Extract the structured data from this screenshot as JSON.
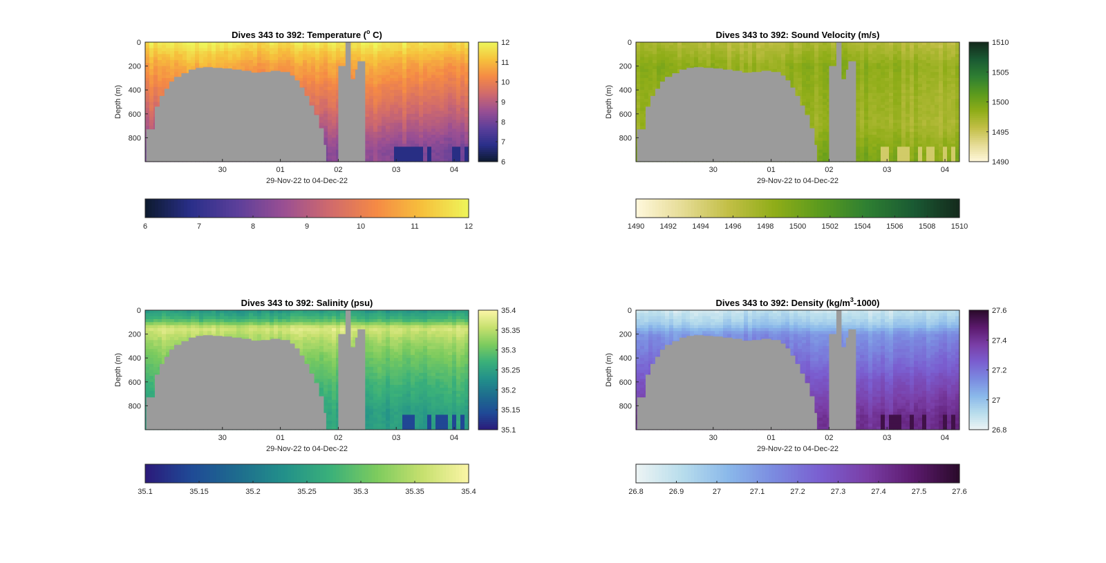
{
  "chart_data": [
    {
      "type": "heatmap",
      "title_text": "Dives 343 to 392: Temperature (",
      "title_sup": "o",
      "title_tail": " C)",
      "xlabel": "29-Nov-22 to 04-Dec-22",
      "ylabel": "Depth (m)",
      "xlim": [
        "2022-11-28T16:00",
        "2022-12-04T06:00"
      ],
      "ylim": [
        1000,
        0
      ],
      "xticks": [
        {
          "date": "2022-11-30",
          "label": "30"
        },
        {
          "date": "2022-12-01",
          "label": "01"
        },
        {
          "date": "2022-12-02",
          "label": "02"
        },
        {
          "date": "2022-12-03",
          "label": "03"
        },
        {
          "date": "2022-12-04",
          "label": "04"
        }
      ],
      "yticks": [
        0,
        200,
        400,
        600,
        800
      ],
      "colorbar": {
        "min": 6,
        "max": 12,
        "side_ticks": [
          12,
          11,
          10,
          9,
          8,
          7,
          6
        ],
        "bottom_ticks": [
          6,
          7,
          8,
          9,
          10,
          11,
          12
        ]
      },
      "colormap": [
        "#0d1a2e",
        "#2a2f8a",
        "#5c3f9a",
        "#9a4f93",
        "#d06a6c",
        "#f58a45",
        "#f6c13c",
        "#eef55a"
      ],
      "profile": {
        "depths": [
          0,
          100,
          200,
          350,
          600,
          900
        ],
        "values": [
          11.8,
          11.2,
          10.7,
          10.2,
          9.4,
          8.3
        ]
      },
      "deep_low_value": 6.8,
      "nodata_color": "#9b9b9b"
    },
    {
      "type": "heatmap",
      "title_text": "Dives 343 to 392: Sound Velocity (m/s)",
      "xlabel": "29-Nov-22 to 04-Dec-22",
      "ylabel": "Depth (m)",
      "xlim": [
        "2022-11-28T16:00",
        "2022-12-04T06:00"
      ],
      "ylim": [
        1000,
        0
      ],
      "xticks": [
        {
          "date": "2022-11-30",
          "label": "30"
        },
        {
          "date": "2022-12-01",
          "label": "01"
        },
        {
          "date": "2022-12-02",
          "label": "02"
        },
        {
          "date": "2022-12-03",
          "label": "03"
        },
        {
          "date": "2022-12-04",
          "label": "04"
        }
      ],
      "yticks": [
        0,
        200,
        400,
        600,
        800
      ],
      "colorbar": {
        "min": 1490,
        "max": 1510,
        "side_ticks": [
          1510,
          1505,
          1500,
          1495,
          1490
        ],
        "bottom_ticks": [
          1490,
          1492,
          1494,
          1496,
          1498,
          1500,
          1502,
          1504,
          1506,
          1508,
          1510
        ]
      },
      "colormap": [
        "#fff8dc",
        "#e6dc96",
        "#c2bf46",
        "#8fad18",
        "#5a9a1e",
        "#2e7f32",
        "#1a5a33",
        "#142a1c"
      ],
      "profile": {
        "depths": [
          0,
          100,
          200,
          400,
          700,
          950
        ],
        "values": [
          1496.5,
          1497.5,
          1498.5,
          1498.0,
          1497.5,
          1499.5
        ]
      },
      "deep_low_value": 1494.5,
      "nodata_color": "#9b9b9b"
    },
    {
      "type": "heatmap",
      "title_text": "Dives 343 to 392: Salinity (psu)",
      "xlabel": "29-Nov-22 to 04-Dec-22",
      "ylabel": "Depth (m)",
      "xlim": [
        "2022-11-28T16:00",
        "2022-12-04T06:00"
      ],
      "ylim": [
        1000,
        0
      ],
      "xticks": [
        {
          "date": "2022-11-30",
          "label": "30"
        },
        {
          "date": "2022-12-01",
          "label": "01"
        },
        {
          "date": "2022-12-02",
          "label": "02"
        },
        {
          "date": "2022-12-03",
          "label": "03"
        },
        {
          "date": "2022-12-04",
          "label": "04"
        }
      ],
      "yticks": [
        0,
        200,
        400,
        600,
        800
      ],
      "colorbar": {
        "min": 35.1,
        "max": 35.4,
        "side_ticks": [
          "35.4",
          "35.35",
          "35.3",
          "35.25",
          "35.2",
          "35.15",
          "35.1"
        ],
        "bottom_ticks": [
          "35.1",
          "35.15",
          "35.2",
          "35.25",
          "35.3",
          "35.35",
          "35.4"
        ]
      },
      "colormap": [
        "#2b1a7a",
        "#1f4a96",
        "#1e6c8e",
        "#22908a",
        "#3ab07a",
        "#7ccb5e",
        "#c6e06e",
        "#fbf5a6"
      ],
      "profile": {
        "depths": [
          0,
          80,
          150,
          250,
          400,
          600,
          850
        ],
        "values": [
          35.24,
          35.28,
          35.37,
          35.34,
          35.31,
          35.28,
          35.25
        ]
      },
      "deep_low_value": 35.14,
      "nodata_color": "#9b9b9b"
    },
    {
      "type": "heatmap",
      "title_text": "Dives 343 to 392: Density (kg/m",
      "title_sup": "3",
      "title_tail": "-1000)",
      "xlabel": "29-Nov-22 to 04-Dec-22",
      "ylabel": "Depth (m)",
      "xlim": [
        "2022-11-28T16:00",
        "2022-12-04T06:00"
      ],
      "ylim": [
        1000,
        0
      ],
      "xticks": [
        {
          "date": "2022-11-30",
          "label": "30"
        },
        {
          "date": "2022-12-01",
          "label": "01"
        },
        {
          "date": "2022-12-02",
          "label": "02"
        },
        {
          "date": "2022-12-03",
          "label": "03"
        },
        {
          "date": "2022-12-04",
          "label": "04"
        }
      ],
      "yticks": [
        0,
        200,
        400,
        600,
        800
      ],
      "colorbar": {
        "min": 26.8,
        "max": 27.6,
        "side_ticks": [
          "27.6",
          "27.4",
          "27.2",
          "27",
          "26.8"
        ],
        "bottom_ticks": [
          "26.8",
          "26.9",
          "27",
          "27.1",
          "27.2",
          "27.3",
          "27.4",
          "27.5",
          "27.6"
        ]
      },
      "colormap": [
        "#edf4f4",
        "#b8ddec",
        "#8ab8ea",
        "#7b8ae0",
        "#7a5ed0",
        "#7a3ea6",
        "#5c1a6e",
        "#2a0a2a"
      ],
      "profile": {
        "depths": [
          0,
          120,
          200,
          400,
          600,
          900
        ],
        "values": [
          26.88,
          26.98,
          27.12,
          27.2,
          27.3,
          27.42
        ]
      },
      "deep_low_value": 27.55,
      "nodata_color": "#9b9b9b"
    }
  ],
  "gaps": {
    "ridge": [
      [
        "2022-11-28T18:00",
        730
      ],
      [
        "2022-11-28T20:00",
        540
      ],
      [
        "2022-11-28T22:00",
        450
      ],
      [
        "2022-11-29T00:00",
        390
      ],
      [
        "2022-11-29T02:00",
        330
      ],
      [
        "2022-11-29T04:00",
        290
      ],
      [
        "2022-11-29T07:00",
        260
      ],
      [
        "2022-11-29T10:00",
        230
      ],
      [
        "2022-11-29T13:00",
        215
      ],
      [
        "2022-11-29T16:00",
        210
      ],
      [
        "2022-11-29T20:00",
        215
      ],
      [
        "2022-11-30T00:00",
        220
      ],
      [
        "2022-11-30T04:00",
        230
      ],
      [
        "2022-11-30T08:00",
        240
      ],
      [
        "2022-11-30T12:00",
        255
      ],
      [
        "2022-11-30T16:00",
        250
      ],
      [
        "2022-11-30T20:00",
        240
      ],
      [
        "2022-12-01T00:00",
        250
      ],
      [
        "2022-12-01T04:00",
        280
      ],
      [
        "2022-12-01T06:00",
        320
      ],
      [
        "2022-12-01T08:00",
        380
      ],
      [
        "2022-12-01T10:00",
        450
      ],
      [
        "2022-12-01T12:00",
        530
      ],
      [
        "2022-12-01T14:00",
        610
      ],
      [
        "2022-12-01T16:00",
        720
      ],
      [
        "2022-12-01T18:00",
        860
      ]
    ],
    "ridge_start": "2022-11-28T16:30",
    "ridge_end": "2022-12-01T19:00",
    "column_blocks": [
      {
        "start": "2022-12-02T00:00",
        "end": "2022-12-02T03:00",
        "top": 200
      },
      {
        "start": "2022-12-02T03:00",
        "end": "2022-12-02T05:00",
        "top": 0
      },
      {
        "start": "2022-12-02T05:00",
        "end": "2022-12-02T07:00",
        "top": 310
      },
      {
        "start": "2022-12-02T07:00",
        "end": "2022-12-02T08:00",
        "top": 230
      },
      {
        "start": "2022-12-02T08:00",
        "end": "2022-12-02T09:00",
        "top": 160
      },
      {
        "start": "2022-12-02T09:00",
        "end": "2022-12-02T11:00",
        "top": 160
      }
    ]
  }
}
